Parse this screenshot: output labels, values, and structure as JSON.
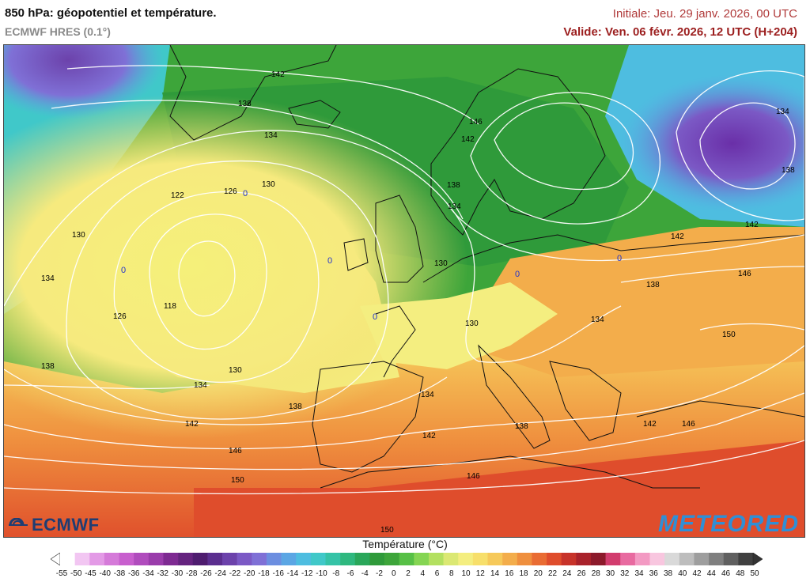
{
  "header": {
    "title": "850 hPa: géopotentiel et température.",
    "model": "ECMWF HRES (0.1°)",
    "initial": "Initiale: Jeu. 29 janv. 2026, 00 UTC",
    "valid": "Valide: Ven. 06 févr. 2026, 12 UTC (H+204)"
  },
  "logos": {
    "left": "ECMWF",
    "right": "METEORED"
  },
  "legend": {
    "title": "Température (°C)",
    "ticks": [
      "-55",
      "-50",
      "-45",
      "-40",
      "-38",
      "-36",
      "-34",
      "-32",
      "-30",
      "-28",
      "-26",
      "-24",
      "-22",
      "-20",
      "-18",
      "-16",
      "-14",
      "-12",
      "-10",
      "-8",
      "-6",
      "-4",
      "-2",
      "0",
      "2",
      "4",
      "6",
      "8",
      "10",
      "12",
      "14",
      "16",
      "18",
      "20",
      "22",
      "24",
      "26",
      "28",
      "30",
      "32",
      "34",
      "36",
      "38",
      "40",
      "42",
      "44",
      "46",
      "48",
      "50"
    ],
    "colors": [
      "#ffffff",
      "#f2c6f2",
      "#e39ae6",
      "#d57ad9",
      "#c85fce",
      "#b04cbd",
      "#9a3cab",
      "#7e2a92",
      "#65237f",
      "#4e1c6f",
      "#5b2e8f",
      "#6c42ab",
      "#7b59c5",
      "#7f70d6",
      "#6c8ee0",
      "#5ba6e4",
      "#4ebde0",
      "#40c8c9",
      "#35c3a7",
      "#2fb87f",
      "#2aa75a",
      "#2f9a3a",
      "#3da53a",
      "#57c046",
      "#85d553",
      "#b3e060",
      "#dbe873",
      "#f4ee80",
      "#f7df6b",
      "#f6c95a",
      "#f3ad4b",
      "#ef8f3e",
      "#e96c33",
      "#df4d2c",
      "#c7332a",
      "#a9222b",
      "#8c1a2b",
      "#d23c6e",
      "#e86aa0",
      "#f39ac3",
      "#f8c6df",
      "#d9d9d9",
      "#bdbdbd",
      "#9e9e9e",
      "#7f7f7f",
      "#606060",
      "#404040"
    ]
  },
  "isohypses": [
    "118",
    "122",
    "126",
    "130",
    "134",
    "138",
    "142",
    "146",
    "150"
  ],
  "contour_labels": [
    {
      "text": "142"
    },
    {
      "text": "138"
    },
    {
      "text": "134"
    },
    {
      "text": "130"
    },
    {
      "text": "122"
    },
    {
      "text": "126"
    },
    {
      "text": "130"
    },
    {
      "text": "134"
    },
    {
      "text": "118"
    },
    {
      "text": "126"
    },
    {
      "text": "138"
    },
    {
      "text": "134"
    },
    {
      "text": "130"
    },
    {
      "text": "138"
    },
    {
      "text": "142"
    },
    {
      "text": "146"
    },
    {
      "text": "150"
    },
    {
      "text": "146"
    },
    {
      "text": "142"
    },
    {
      "text": "138"
    },
    {
      "text": "134"
    },
    {
      "text": "130"
    },
    {
      "text": "134"
    },
    {
      "text": "130"
    },
    {
      "text": "134"
    },
    {
      "text": "138"
    },
    {
      "text": "142"
    },
    {
      "text": "138"
    },
    {
      "text": "142"
    },
    {
      "text": "146"
    },
    {
      "text": "150"
    },
    {
      "text": "142"
    },
    {
      "text": "146"
    },
    {
      "text": "134"
    },
    {
      "text": "138"
    },
    {
      "text": "146"
    },
    {
      "text": "142"
    },
    {
      "text": "150"
    }
  ],
  "centers": [
    {
      "text": "0"
    },
    {
      "text": "0"
    },
    {
      "text": "0"
    },
    {
      "text": "0"
    },
    {
      "text": "0"
    },
    {
      "text": "0"
    }
  ]
}
